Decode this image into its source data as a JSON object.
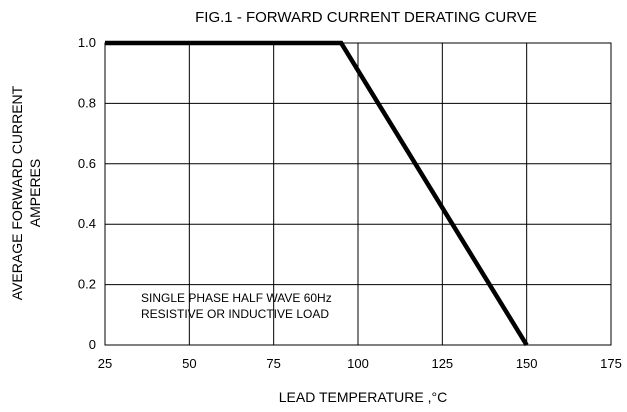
{
  "chart_data": {
    "type": "line",
    "title": "FIG.1 - FORWARD CURRENT DERATING CURVE",
    "xlabel": "LEAD TEMPERATURE ,°C",
    "ylabel_lines": [
      "AVERAGE FORWARD CURRENT",
      "AMPERES"
    ],
    "xlim": [
      25,
      175
    ],
    "ylim": [
      0,
      1.0
    ],
    "x_ticks": [
      25,
      50,
      75,
      100,
      125,
      150,
      175
    ],
    "x_tick_labels": [
      "25",
      "50",
      "75",
      "100",
      "125",
      "150",
      "175"
    ],
    "y_ticks": [
      0,
      0.2,
      0.4,
      0.6,
      0.8,
      1.0
    ],
    "y_tick_labels": [
      "0",
      "0.2",
      "0.4",
      "0.6",
      "0.8",
      "1.0"
    ],
    "grid": true,
    "annotation_lines": [
      "SINGLE PHASE HALF WAVE 60Hz",
      "RESISTIVE OR INDUCTIVE LOAD"
    ],
    "series": [
      {
        "x": [
          25,
          95,
          150
        ],
        "y": [
          1.0,
          1.0,
          0
        ],
        "color": "#000000"
      }
    ]
  }
}
